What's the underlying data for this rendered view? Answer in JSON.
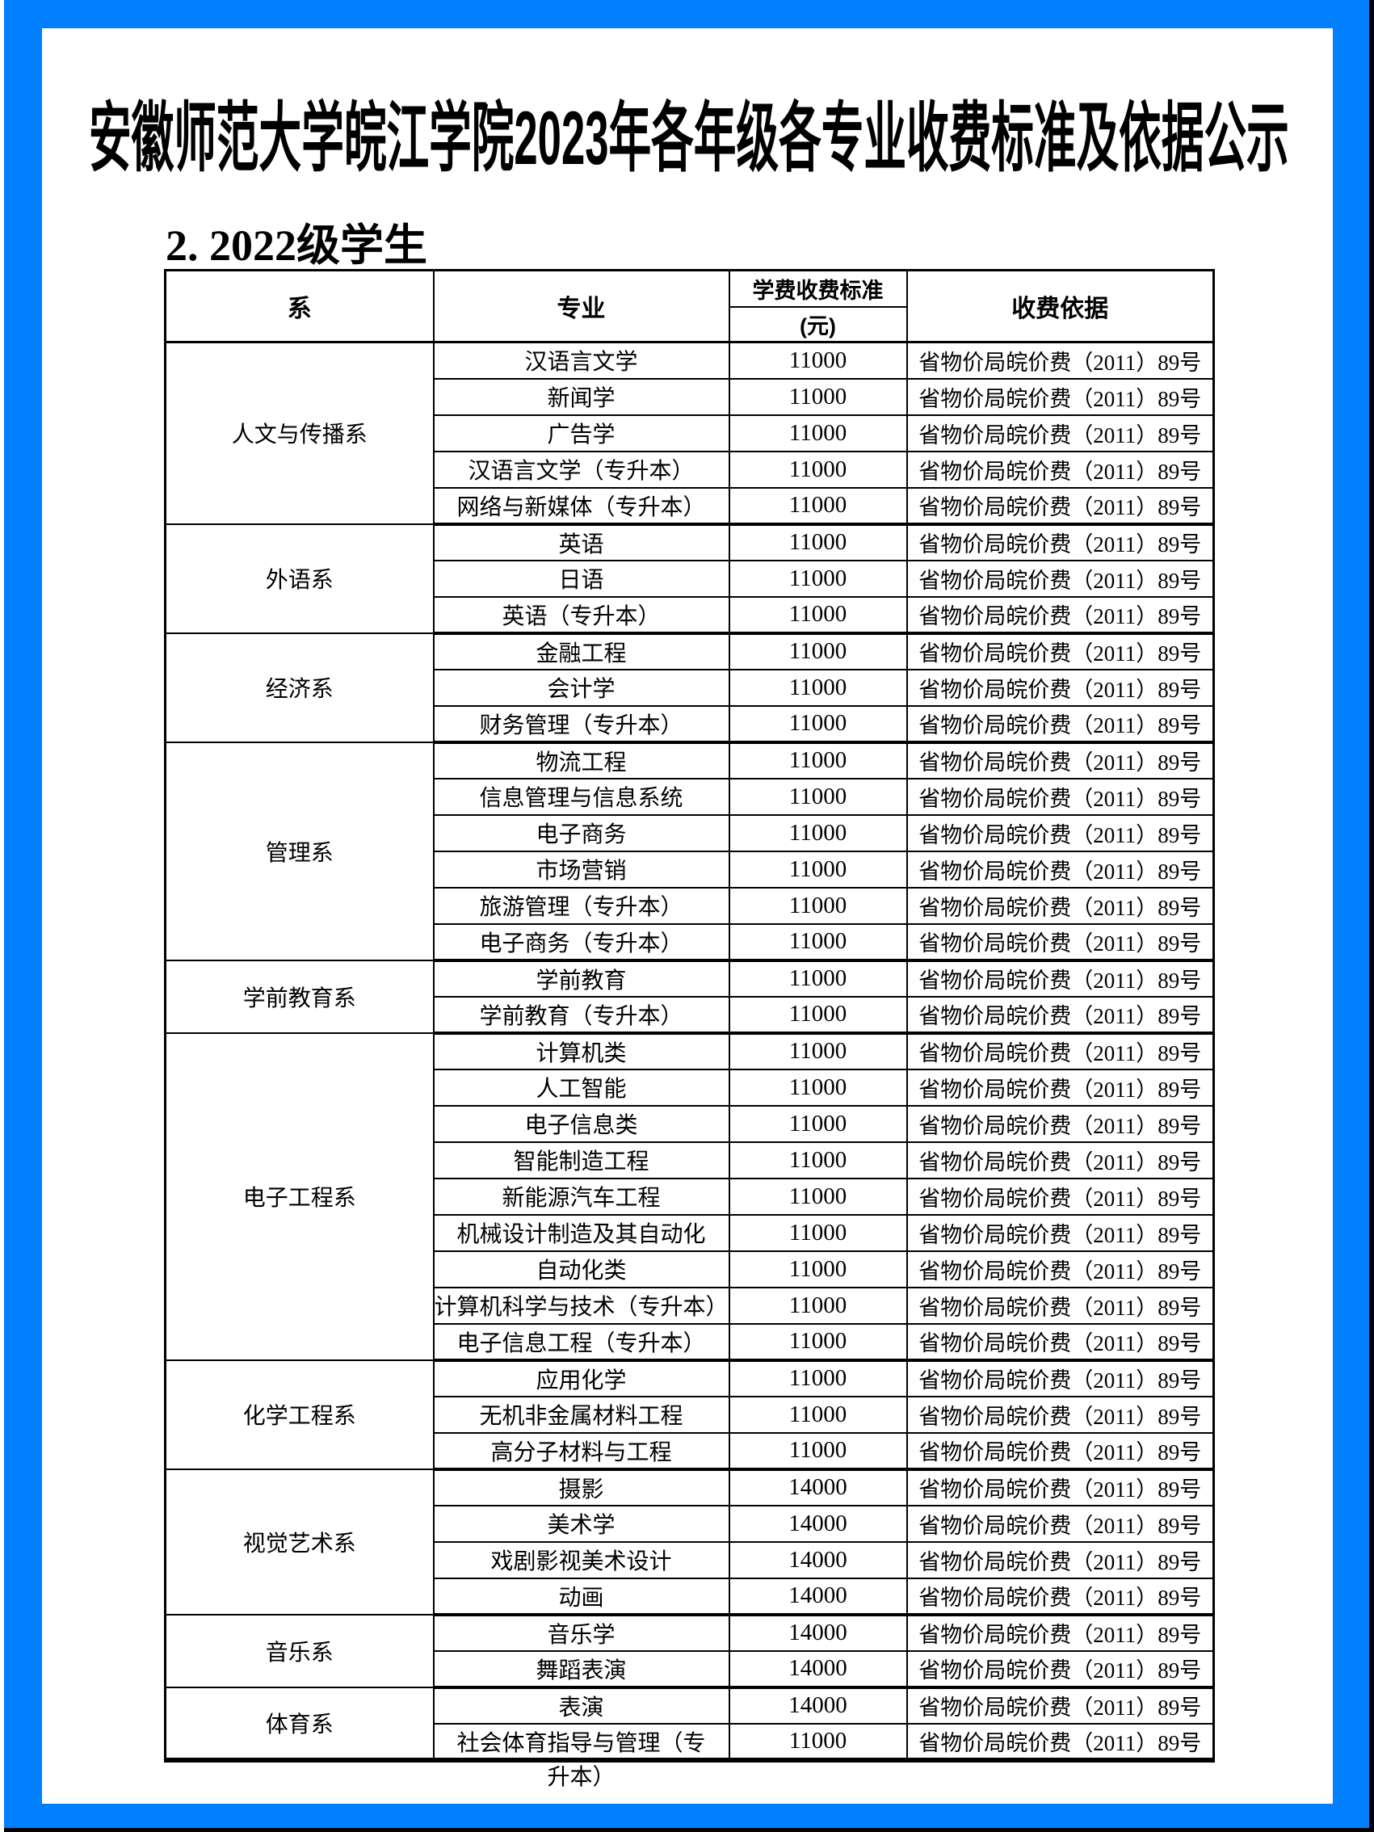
{
  "page": {
    "title": "安徽师范大学皖江学院2023年各年级各专业收费标准及依据公示",
    "section_heading": "2. 2022级学生"
  },
  "colors": {
    "frame_blue": "#0080FF",
    "border_black": "#000000",
    "page_white": "#FFFFFF"
  },
  "table": {
    "headers": {
      "department": "系",
      "major": "专业",
      "tuition_line1": "学费收费标准",
      "tuition_line2": "(元)",
      "basis": "收费依据"
    },
    "fee_basis_text": "省物价局皖价费（2011）89号",
    "groups": [
      {
        "department": "人文与传播系",
        "majors": [
          {
            "name": "汉语言文学",
            "fee": "11000"
          },
          {
            "name": "新闻学",
            "fee": "11000"
          },
          {
            "name": "广告学",
            "fee": "11000"
          },
          {
            "name": "汉语言文学（专升本）",
            "fee": "11000"
          },
          {
            "name": "网络与新媒体（专升本）",
            "fee": "11000"
          }
        ]
      },
      {
        "department": "外语系",
        "majors": [
          {
            "name": "英语",
            "fee": "11000"
          },
          {
            "name": "日语",
            "fee": "11000"
          },
          {
            "name": "英语（专升本）",
            "fee": "11000"
          }
        ]
      },
      {
        "department": "经济系",
        "majors": [
          {
            "name": "金融工程",
            "fee": "11000"
          },
          {
            "name": "会计学",
            "fee": "11000"
          },
          {
            "name": "财务管理（专升本）",
            "fee": "11000"
          }
        ]
      },
      {
        "department": "管理系",
        "majors": [
          {
            "name": "物流工程",
            "fee": "11000"
          },
          {
            "name": "信息管理与信息系统",
            "fee": "11000"
          },
          {
            "name": "电子商务",
            "fee": "11000"
          },
          {
            "name": "市场营销",
            "fee": "11000"
          },
          {
            "name": "旅游管理（专升本）",
            "fee": "11000"
          },
          {
            "name": "电子商务（专升本）",
            "fee": "11000"
          }
        ]
      },
      {
        "department": "学前教育系",
        "majors": [
          {
            "name": "学前教育",
            "fee": "11000"
          },
          {
            "name": "学前教育（专升本）",
            "fee": "11000"
          }
        ]
      },
      {
        "department": "电子工程系",
        "majors": [
          {
            "name": "计算机类",
            "fee": "11000"
          },
          {
            "name": "人工智能",
            "fee": "11000"
          },
          {
            "name": "电子信息类",
            "fee": "11000"
          },
          {
            "name": "智能制造工程",
            "fee": "11000"
          },
          {
            "name": "新能源汽车工程",
            "fee": "11000"
          },
          {
            "name": "机械设计制造及其自动化",
            "fee": "11000"
          },
          {
            "name": "自动化类",
            "fee": "11000"
          },
          {
            "name": "计算机科学与技术（专升本）",
            "fee": "11000"
          },
          {
            "name": "电子信息工程（专升本）",
            "fee": "11000"
          }
        ]
      },
      {
        "department": "化学工程系",
        "majors": [
          {
            "name": "应用化学",
            "fee": "11000"
          },
          {
            "name": "无机非金属材料工程",
            "fee": "11000"
          },
          {
            "name": "高分子材料与工程",
            "fee": "11000"
          }
        ]
      },
      {
        "department": "视觉艺术系",
        "majors": [
          {
            "name": "摄影",
            "fee": "14000"
          },
          {
            "name": "美术学",
            "fee": "14000"
          },
          {
            "name": "戏剧影视美术设计",
            "fee": "14000"
          },
          {
            "name": "动画",
            "fee": "14000"
          }
        ]
      },
      {
        "department": "音乐系",
        "majors": [
          {
            "name": "音乐学",
            "fee": "14000"
          },
          {
            "name": "舞蹈表演",
            "fee": "14000"
          }
        ]
      },
      {
        "department": "体育系",
        "majors": [
          {
            "name": "表演",
            "fee": "14000"
          },
          {
            "name": "社会体育指导与管理（专升本）",
            "fee": "11000",
            "two_line": true
          }
        ]
      }
    ]
  }
}
